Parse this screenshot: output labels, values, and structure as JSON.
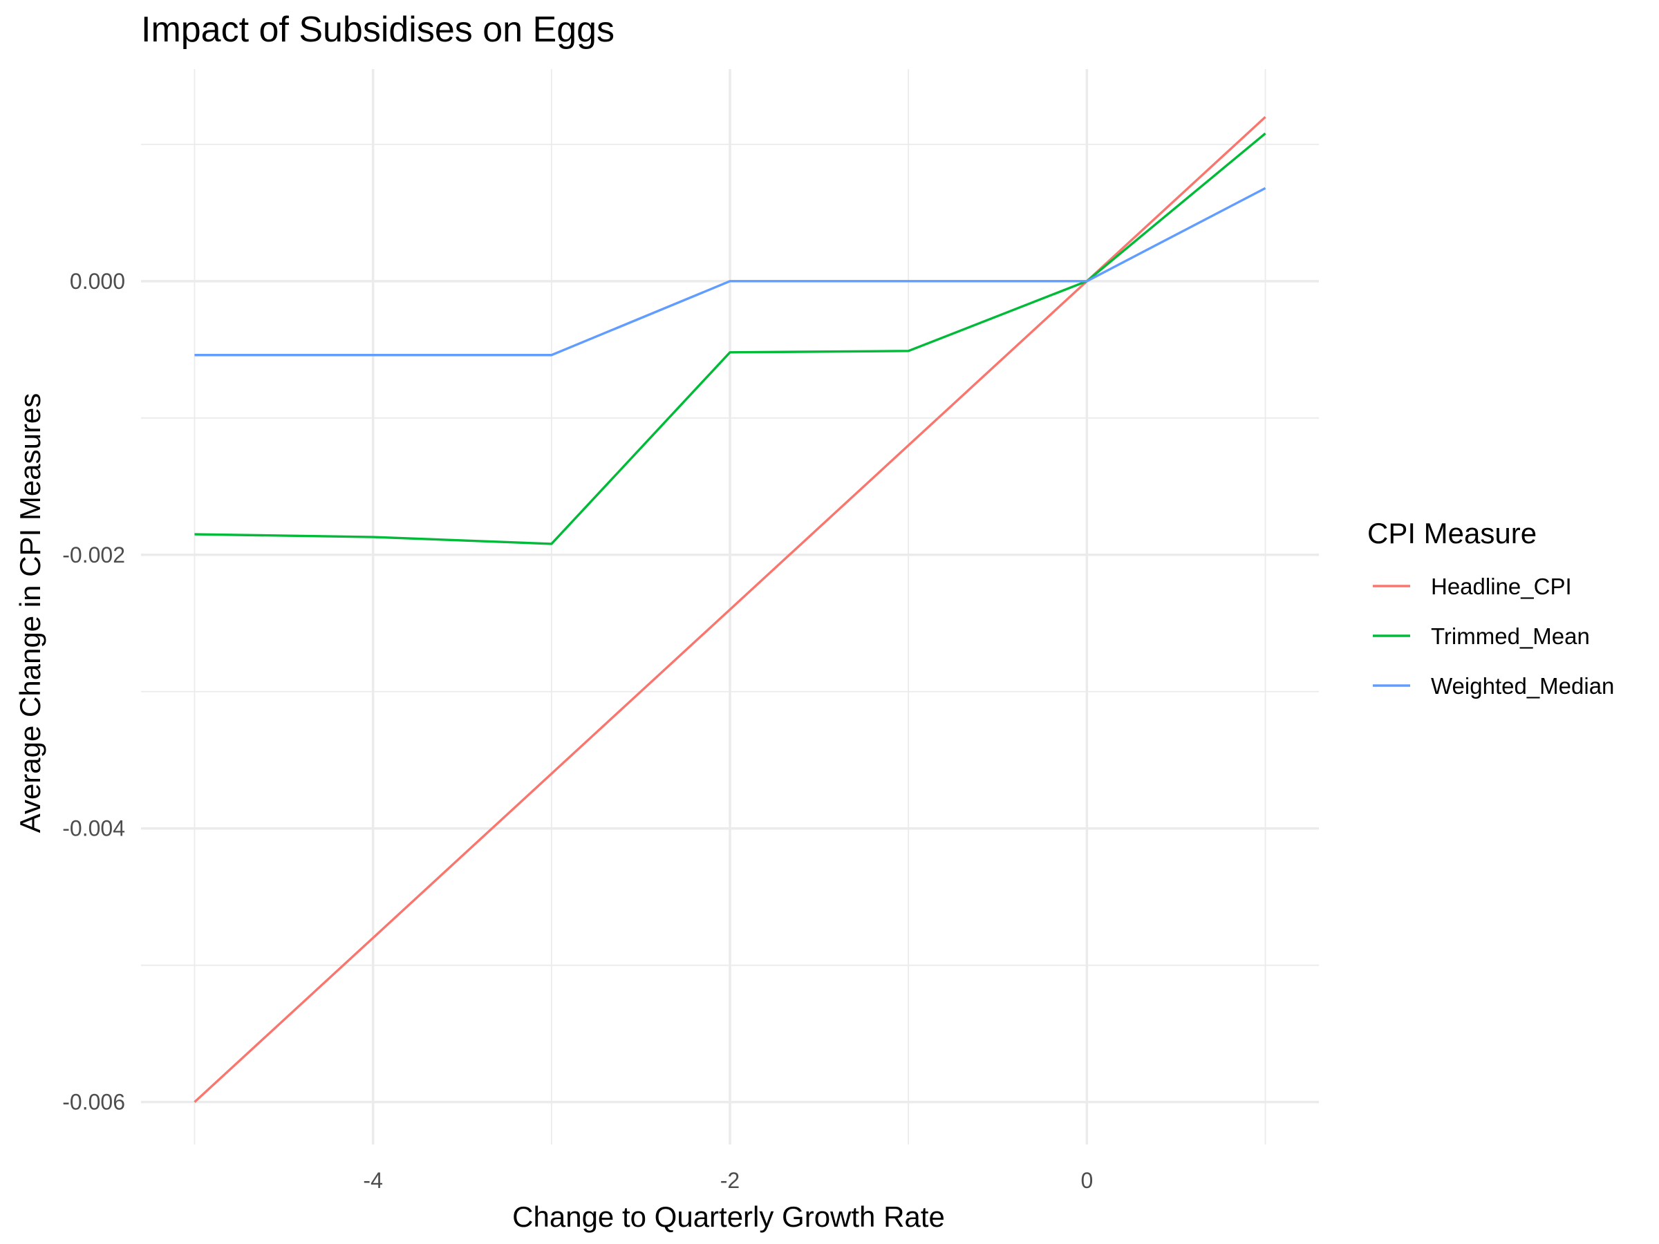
{
  "chart_data": {
    "type": "line",
    "title": "Impact of Subsidises on Eggs",
    "xlabel": "Change to Quarterly Growth Rate",
    "ylabel": "Average Change in CPI Measures",
    "x": [
      -5,
      -4,
      -3,
      -2,
      -1,
      0,
      1
    ],
    "xlim": [
      -5.3,
      1.3
    ],
    "ylim": [
      -0.00631,
      0.00155
    ],
    "x_ticks": [
      -4,
      -2,
      0
    ],
    "x_tick_labels": [
      "-4",
      "-2",
      "0"
    ],
    "y_ticks": [
      -0.006,
      -0.004,
      -0.002,
      0.0
    ],
    "y_tick_labels": [
      "-0.006",
      "-0.004",
      "-0.002",
      "0.000"
    ],
    "x_minor_ticks": [
      -5,
      -3,
      -1,
      1
    ],
    "y_minor_ticks": [
      -0.005,
      -0.003,
      -0.001,
      0.001
    ],
    "grid": true,
    "legend": {
      "title": "CPI Measure",
      "position": "right"
    },
    "series": [
      {
        "name": "Headline_CPI",
        "color": "#F8766D",
        "values": [
          -0.006,
          -0.0048,
          -0.0036,
          -0.0024,
          -0.0012,
          0.0,
          0.0012
        ]
      },
      {
        "name": "Trimmed_Mean",
        "color": "#00BA38",
        "values": [
          -0.00185,
          -0.00187,
          -0.00192,
          -0.00052,
          -0.00051,
          0.0,
          0.00108
        ]
      },
      {
        "name": "Weighted_Median",
        "color": "#619CFF",
        "values": [
          -0.00054,
          -0.00054,
          -0.00054,
          0.0,
          0.0,
          0.0,
          0.00068
        ]
      }
    ]
  }
}
